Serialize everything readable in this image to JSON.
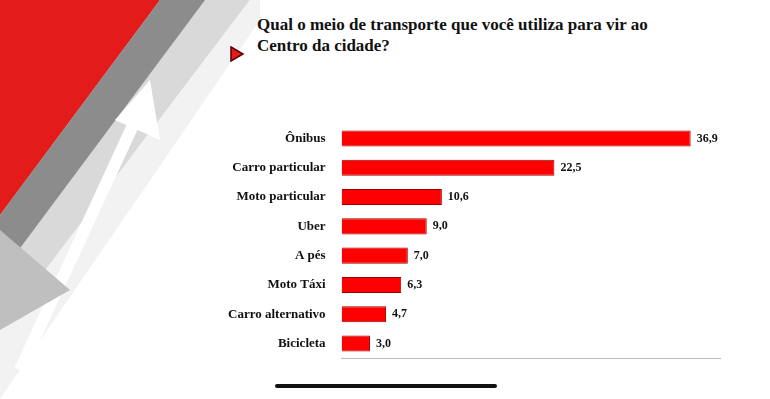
{
  "chart_data": {
    "type": "bar",
    "title": "Qual o meio de transporte que você utiliza para vir ao Centro da cidade?",
    "orientation": "horizontal",
    "categories": [
      "Ônibus",
      "Carro particular",
      "Moto particular",
      "Uber",
      "A pés",
      "Moto Táxi",
      "Carro alternativo",
      "Bicicleta"
    ],
    "values": [
      36.9,
      22.5,
      10.6,
      9.0,
      7.0,
      6.3,
      4.7,
      3.0
    ],
    "value_labels": [
      "36,9",
      "22,5",
      "10,6",
      "9,0",
      "7,0",
      "6,3",
      "4,7",
      "3,0"
    ],
    "color": "#ff0000",
    "xlim": [
      0,
      40
    ],
    "grid": false,
    "data_labels": true,
    "tick_labels": "y"
  }
}
